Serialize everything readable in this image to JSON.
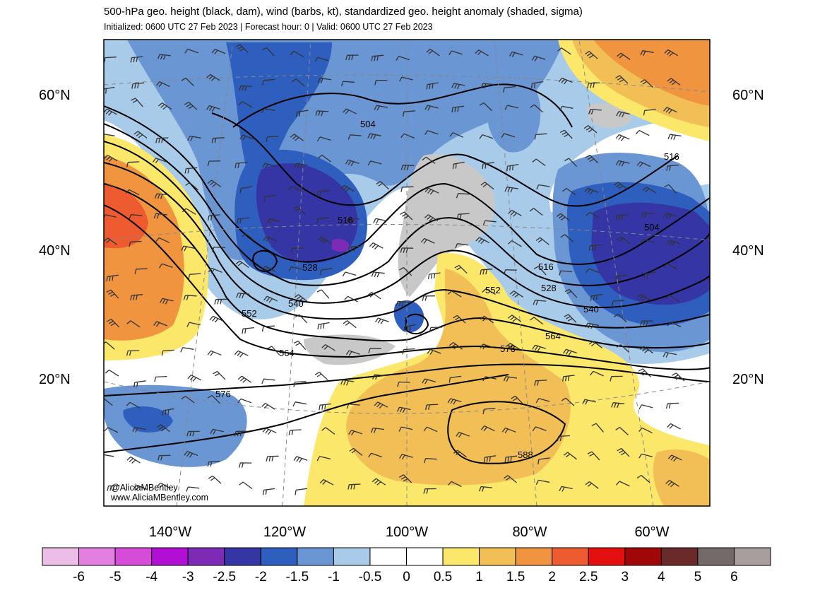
{
  "header": {
    "title": "500-hPa geo. height (black, dam), wind (barbs, kt), standardized geo. height anomaly (shaded, sigma)",
    "subtitle": "Initialized: 0600 UTC 27 Feb 2023 | Forecast hour: 0 | Valid: 0600 UTC 27 Feb 2023"
  },
  "map": {
    "lat_labels": [
      "60°N",
      "40°N",
      "20°N"
    ],
    "lon_labels": [
      "140°W",
      "120°W",
      "100°W",
      "80°W",
      "60°W"
    ],
    "contour_labels": [
      "504",
      "516",
      "528",
      "540",
      "552",
      "564",
      "576",
      "588",
      "516",
      "504",
      "516",
      "528",
      "540",
      "552",
      "564",
      "576"
    ],
    "credit": {
      "handle": "@AliciaMBentley",
      "website": "www.AliciaMBentley.com"
    }
  },
  "colorbar": {
    "labels": [
      "-6",
      "-5",
      "-4",
      "-3",
      "-2.5",
      "-2",
      "-1.5",
      "-1",
      "-0.5",
      "0",
      "0.5",
      "1",
      "1.5",
      "2",
      "2.5",
      "3",
      "4",
      "5",
      "6"
    ],
    "colors": [
      "#ecbde6",
      "#e47fe2",
      "#d64cd8",
      "#b10fd3",
      "#7d2ab6",
      "#3535a6",
      "#2f5fbe",
      "#6a96d4",
      "#a9cbea",
      "#ffffff",
      "#ffffff",
      "#fbe86b",
      "#f2bf57",
      "#f09440",
      "#ee5b30",
      "#e40f0f",
      "#a10707",
      "#6b2a2a",
      "#756a6a",
      "#a89e9e"
    ]
  },
  "palette": {
    "neg1": "#a9cbea",
    "neg15": "#6a96d4",
    "neg2": "#2f5fbe",
    "neg25": "#3535a6",
    "neg3": "#7d2ab6",
    "pos1": "#fbe86b",
    "pos15": "#f2bf57",
    "pos2": "#f09440",
    "pos25": "#ee5b30",
    "gray": "#c8c8c8"
  }
}
